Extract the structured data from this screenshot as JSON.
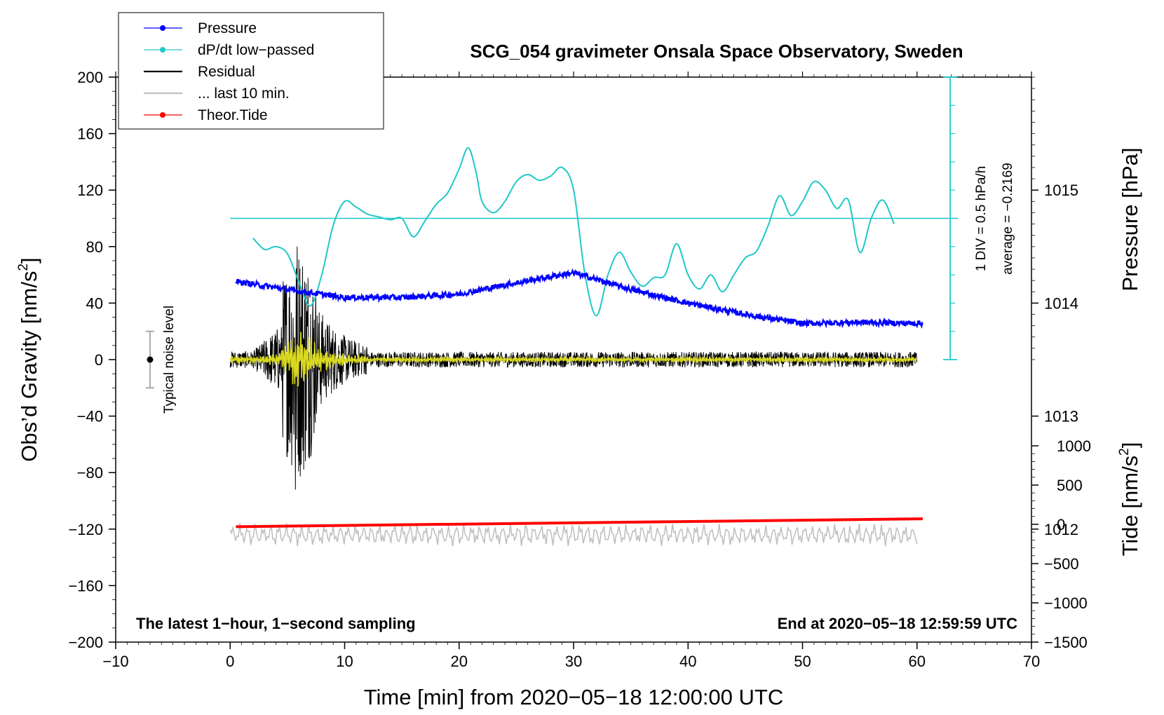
{
  "chart_data": {
    "type": "line",
    "title": "SCG_054 gravimeter Onsala Space Observatory, Sweden",
    "xlabel": "Time [min] from 2020−05−18 12:00:00 UTC",
    "ylabel_left": "Obs’d Gravity [nm/s",
    "ylabel_left_end": "]",
    "ylabel_pressure": "Pressure [hPa]",
    "ylabel_tide": "Tide [nm/s",
    "ylabel_tide_end": "]",
    "superscript": "2",
    "xlim": [
      -10,
      70
    ],
    "ylim": [
      -200,
      200
    ],
    "x_ticks": [
      "−10",
      "0",
      "10",
      "20",
      "30",
      "40",
      "50",
      "60",
      "70"
    ],
    "y_ticks": [
      "−200",
      "−160",
      "−120",
      "−80",
      "−40",
      "0",
      "40",
      "80",
      "120",
      "160",
      "200"
    ],
    "pressure_ticks": [
      "1012",
      "1013",
      "1014",
      "1015"
    ],
    "tide_ticks": [
      "−1500",
      "−1000",
      "−500",
      "0",
      "500",
      "1000"
    ],
    "pressure_range_hPa": [
      1011,
      1016
    ],
    "tide_range": [
      -1500,
      1500
    ],
    "legend": [
      {
        "label": "Pressure",
        "color": "#0000ff",
        "marker": true
      },
      {
        "label": "dP/dt low−passed",
        "color": "#20c8c8",
        "marker": true
      },
      {
        "label": "Residual",
        "color": "#000000",
        "marker": false
      },
      {
        "label": "... last 10 min.",
        "color": "#c0c0c0",
        "marker": false
      },
      {
        "label": "Theor.Tide",
        "color": "#ff0000",
        "marker": true
      }
    ],
    "annotations": {
      "left_note": "The latest 1−hour, 1−second sampling",
      "right_note": "End at 2020−05−18 12:59:59 UTC",
      "noise_label": "Typical noise level",
      "div_label": "1 DIV = 0.5 hPa/h",
      "avg_label": "average = −0.2169"
    },
    "noise_level": {
      "x": -7,
      "y": 0,
      "err": 20
    },
    "series": [
      {
        "name": "Pressure",
        "unit": "hPa",
        "color": "#0000ff",
        "x": [
          0,
          5,
          10,
          15,
          20,
          25,
          30,
          35,
          40,
          45,
          50,
          55,
          60
        ],
        "values": [
          1014.2,
          1014.12,
          1014.05,
          1014.05,
          1014.08,
          1014.18,
          1014.27,
          1014.12,
          1014.0,
          1013.9,
          1013.82,
          1013.83,
          1013.82
        ]
      },
      {
        "name": "dP/dt low-passed",
        "unit": "nm/s2 axis",
        "color": "#20c8c8",
        "x": [
          2,
          3,
          4,
          5,
          6,
          7,
          8,
          9,
          10,
          11,
          12,
          13,
          14,
          15,
          16,
          17,
          18,
          19,
          20,
          20.8,
          21.5,
          22,
          23,
          24,
          25,
          26,
          27,
          28,
          29,
          30,
          31,
          32,
          33,
          34,
          35,
          36,
          37,
          38,
          39,
          40,
          41,
          42,
          43,
          44,
          45,
          46,
          47,
          48,
          49,
          50,
          51,
          52,
          53,
          54,
          55,
          56,
          57,
          58
        ],
        "values": [
          86,
          78,
          80,
          75,
          55,
          38,
          60,
          95,
          112,
          108,
          103,
          101,
          99,
          100,
          87,
          98,
          110,
          118,
          135,
          150,
          132,
          112,
          104,
          112,
          126,
          131,
          127,
          130,
          136,
          120,
          60,
          31,
          60,
          76,
          62,
          52,
          58,
          60,
          82,
          60,
          50,
          60,
          48,
          60,
          72,
          77,
          95,
          116,
          102,
          112,
          126,
          120,
          107,
          113,
          76,
          100,
          113,
          96
        ]
      },
      {
        "name": "Residual",
        "unit": "nm/s2",
        "color": "#000000",
        "x_range": [
          0,
          60
        ],
        "peak_min": [
          5.8,
          80
        ],
        "trough_min": [
          5.7,
          -92
        ]
      },
      {
        "name": "... last 10 min.",
        "color": "#c0c0c0",
        "x_range": [
          0,
          60
        ],
        "offset": -124
      },
      {
        "name": "Theor.Tide",
        "unit": "nm/s2",
        "color": "#ff0000",
        "x": [
          0,
          60
        ],
        "values": [
          -30,
          70
        ]
      }
    ],
    "dpdt_reference_level": 100
  }
}
